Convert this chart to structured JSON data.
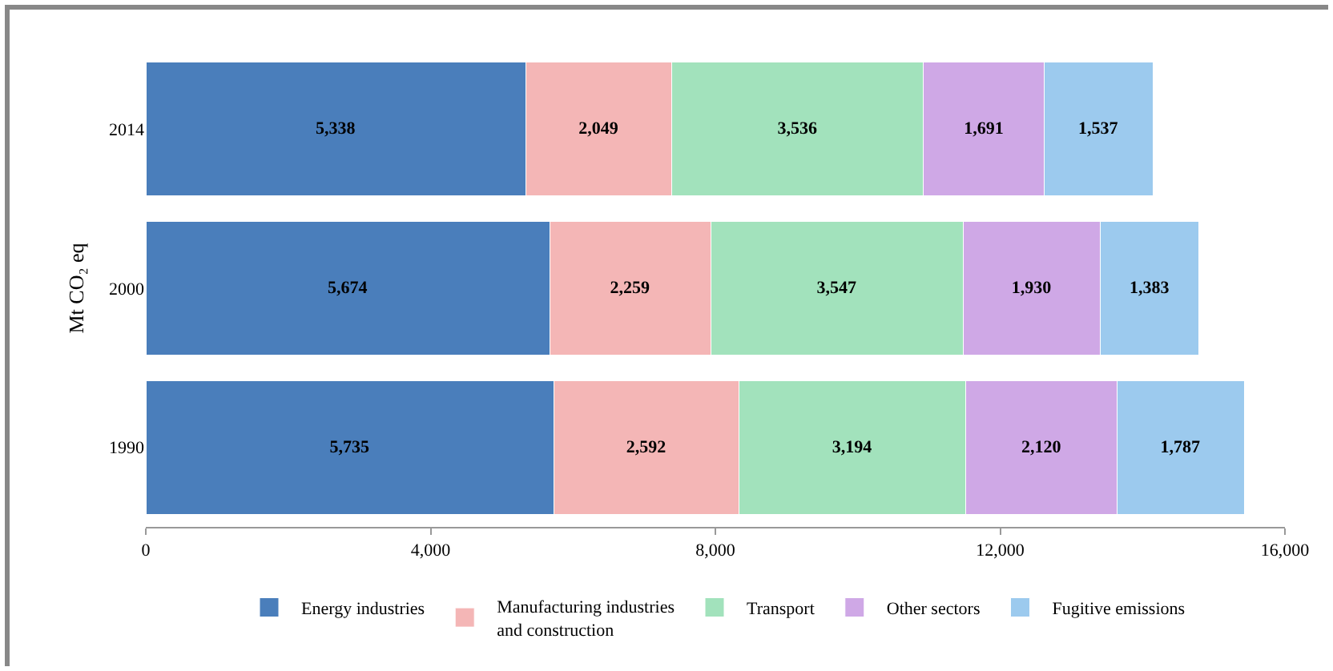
{
  "chart_data": {
    "type": "bar",
    "orientation": "horizontal",
    "stacked": true,
    "ylabel": "Mt CO₂ eq",
    "categories": [
      "2014",
      "2000",
      "1990"
    ],
    "series": [
      {
        "name": "Energy industries",
        "color": "#4a7ebb",
        "values": [
          5338,
          5674,
          5735
        ],
        "value_labels": [
          "5,338",
          "5,674",
          "5,735"
        ]
      },
      {
        "name": "Manufacturing industries\nand construction",
        "color": "#f4b6b6",
        "values": [
          2049,
          2259,
          2592
        ],
        "value_labels": [
          "2,049",
          "2,259",
          "2,592"
        ]
      },
      {
        "name": "Transport",
        "color": "#a2e2bc",
        "values": [
          3536,
          3547,
          3194
        ],
        "value_labels": [
          "3,536",
          "3,547",
          "3,194"
        ]
      },
      {
        "name": "Other sectors",
        "color": "#cfa8e6",
        "values": [
          1691,
          1930,
          2120
        ],
        "value_labels": [
          "1,691",
          "1,930",
          "2,120"
        ]
      },
      {
        "name": "Fugitive emissions",
        "color": "#9ccaee",
        "values": [
          1537,
          1383,
          1787
        ],
        "value_labels": [
          "1,537",
          "1,383",
          "1,787"
        ]
      }
    ],
    "xlim": [
      0,
      16000
    ],
    "xticks": [
      0,
      {
        "value": 4000,
        "label": "4,000"
      },
      {
        "value": 8000,
        "label": "8,000"
      },
      {
        "value": 12000,
        "label": "12,000"
      },
      {
        "value": 16000,
        "label": "16,000"
      }
    ],
    "grid": false,
    "legend": "bottom"
  }
}
